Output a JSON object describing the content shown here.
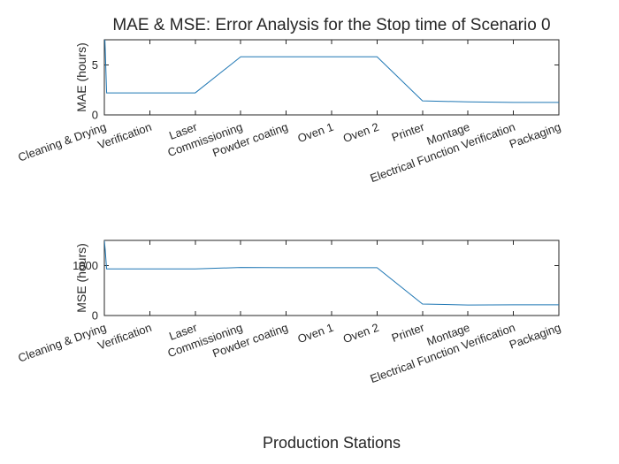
{
  "chart_data": [
    {
      "type": "line",
      "title": "MAE & MSE: Error Analysis for the Stop time of Scenario 0",
      "xlabel": "",
      "ylabel": "MAE (hours)",
      "ylim": [
        0,
        7.5
      ],
      "yticks": [
        0,
        5
      ],
      "categories": [
        "Cleaning & Drying",
        "Verification",
        "Laser",
        "Commissioning",
        "Powder coating",
        "Oven 1",
        "Oven 2",
        "Printer",
        "Montage",
        "Electrical Function Verification",
        "Packaging"
      ],
      "x": [
        1,
        1.02,
        1.05,
        3,
        4,
        5,
        6,
        7,
        8,
        9,
        10,
        11
      ],
      "values": [
        9,
        6.5,
        2.2,
        2.2,
        5.8,
        5.8,
        5.8,
        5.8,
        1.4,
        1.3,
        1.25,
        1.25
      ]
    },
    {
      "type": "line",
      "title": "",
      "xlabel": "Production Stations",
      "ylabel": "MSE (hours)",
      "ylim": [
        0,
        1500
      ],
      "yticks": [
        0,
        1000
      ],
      "categories": [
        "Cleaning & Drying",
        "Verification",
        "Laser",
        "Commissioning",
        "Powder coating",
        "Oven 1",
        "Oven 2",
        "Printer",
        "Montage",
        "Electrical Function Verification",
        "Packaging"
      ],
      "x": [
        1,
        1.02,
        1.05,
        3,
        4,
        5,
        6,
        7,
        8,
        9,
        10,
        11
      ],
      "values": [
        1500,
        1300,
        930,
        930,
        960,
        955,
        955,
        955,
        230,
        210,
        215,
        215
      ]
    }
  ]
}
